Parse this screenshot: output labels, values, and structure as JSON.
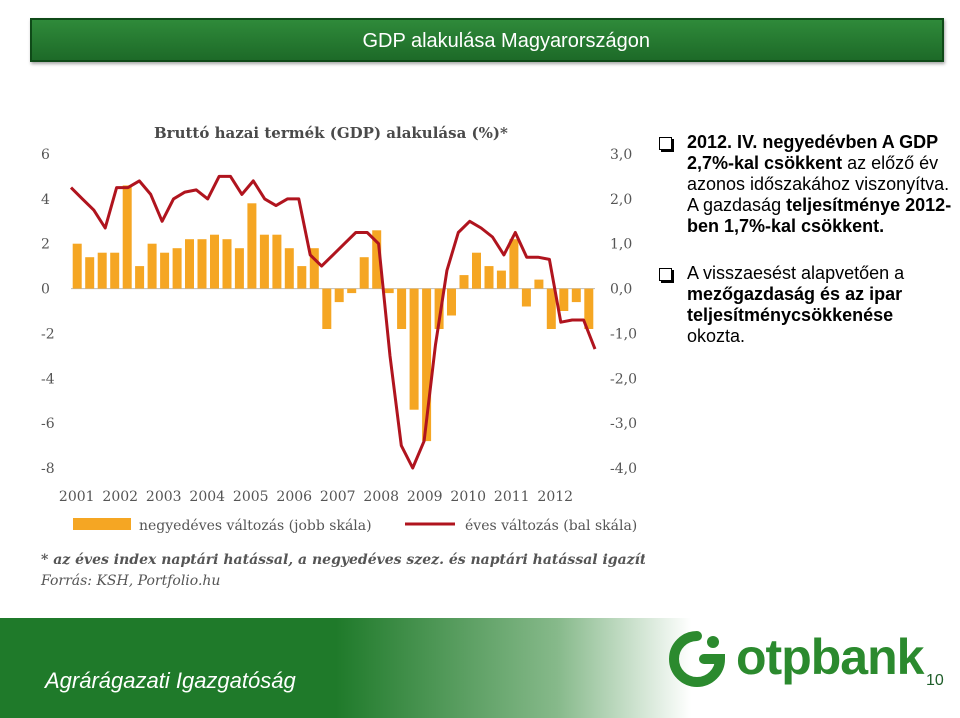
{
  "slide": {
    "title": "GDP alakulása Magyarországon",
    "department": "Agrárágazati Igazgatóság",
    "page_number": "10",
    "logo_text": "otpbank"
  },
  "bullets": [
    {
      "parts": [
        {
          "text": "2012. IV. negyedévben A GDP 2,7%-kal csökkent",
          "bold": true
        },
        {
          "text": " az előző év azonos időszakához viszonyítva. A gazdaság ",
          "bold": false
        },
        {
          "text": "teljesítménye 2012-ben 1,7%-kal csökkent.",
          "bold": true
        }
      ]
    },
    {
      "parts": [
        {
          "text": "A visszaesést alapvetően a ",
          "bold": false
        },
        {
          "text": "mezőgazdaság és az ipar teljesítménycsökkenése",
          "bold": true
        },
        {
          "text": " okozta.",
          "bold": false
        }
      ]
    }
  ],
  "colors": {
    "bar": "#F5A623",
    "line": "#B0141E",
    "title_green": "#2F8A3A",
    "logo_green": "#2B8A2E"
  },
  "chart_data": {
    "type": "bar+line",
    "title": "Bruttó hazai termék (GDP) alakulása (%)*",
    "x_tick_labels": [
      "2001",
      "2002",
      "2003",
      "2004",
      "2005",
      "2006",
      "2007",
      "2008",
      "2009",
      "2010",
      "2011",
      "2012"
    ],
    "left_axis": {
      "ticks": [
        "6",
        "4",
        "2",
        "0",
        "-2",
        "-4",
        "-6",
        "-8"
      ],
      "ylim": [
        -8,
        6
      ]
    },
    "right_axis": {
      "ticks": [
        "3,0",
        "2,0",
        "1,0",
        "0,0",
        "-1,0",
        "-2,0",
        "-3,0",
        "-4,0"
      ],
      "ylim": [
        -4,
        3
      ]
    },
    "grid": false,
    "legend_position": "bottom",
    "series": [
      {
        "name": "negyedéves változás (jobb skála)",
        "type": "bar",
        "axis": "right",
        "values": [
          1.0,
          0.7,
          0.8,
          0.8,
          2.3,
          0.5,
          1.0,
          0.8,
          0.9,
          1.1,
          1.1,
          1.2,
          1.1,
          0.9,
          1.9,
          1.2,
          1.2,
          0.9,
          0.5,
          0.9,
          -0.9,
          -0.3,
          -0.1,
          0.7,
          1.3,
          -0.1,
          -0.9,
          -2.7,
          -3.4,
          -0.9,
          -0.6,
          0.3,
          0.8,
          0.5,
          0.4,
          1.1,
          -0.4,
          0.2,
          -0.9,
          -0.5,
          -0.3,
          -0.9
        ]
      },
      {
        "name": "éves változás (bal skála)",
        "type": "line",
        "axis": "left",
        "values": [
          4.5,
          4.0,
          3.5,
          2.7,
          4.5,
          4.5,
          4.8,
          4.2,
          3.0,
          4.0,
          4.3,
          4.4,
          4.0,
          5.0,
          5.0,
          4.2,
          4.8,
          4.0,
          3.7,
          4.0,
          4.0,
          1.5,
          1.0,
          1.5,
          2.0,
          2.5,
          2.5,
          2.0,
          -3.0,
          -7.0,
          -8.0,
          -6.8,
          -2.5,
          0.8,
          2.5,
          3.0,
          2.7,
          2.3,
          1.5,
          2.5,
          1.4,
          1.4,
          1.3,
          -1.5,
          -1.4,
          -1.4,
          -2.7
        ]
      }
    ],
    "footnote": "* az éves index naptári hatással, a negyedéves szez. és naptári hatással igazítva.",
    "source": "Forrás: KSH, Portfolio.hu"
  }
}
